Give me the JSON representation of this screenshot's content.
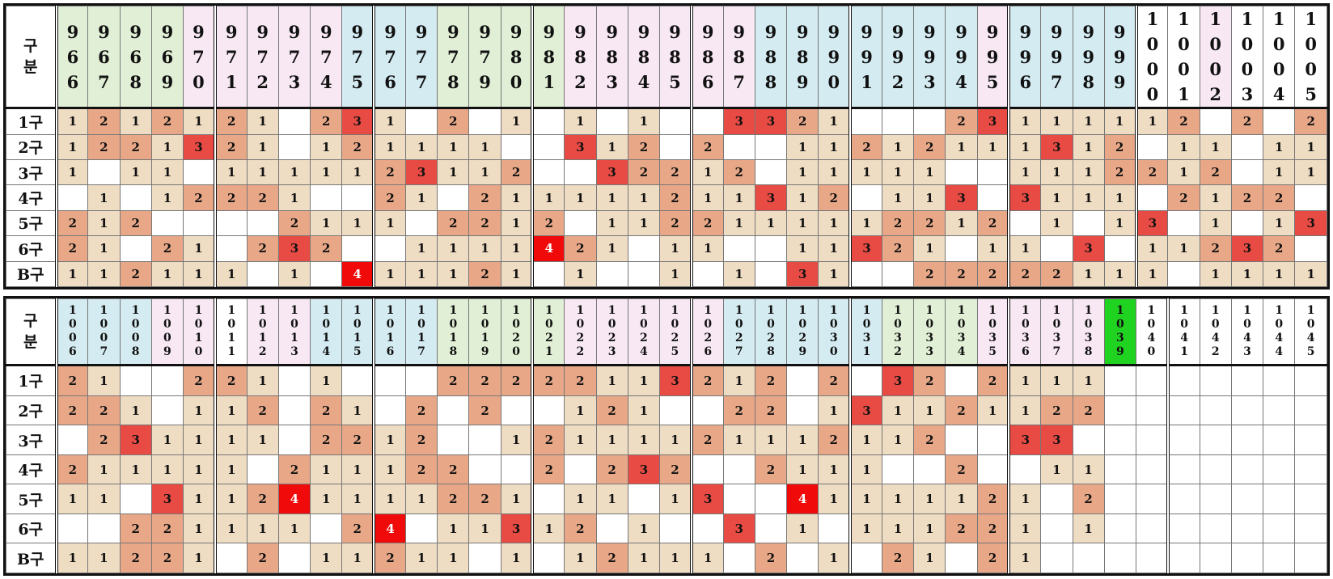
{
  "header_label": "구\n분",
  "row_labels": [
    "1구",
    "2구",
    "3구",
    "4구",
    "5구",
    "6구",
    "B구"
  ],
  "colors": {
    "header_green": "#e0efd5",
    "header_pink": "#f7e8f4",
    "header_blue": "#d4ebf1",
    "header_white": "#ffffff",
    "header_current": "#21d321",
    "count_1": "#eedcc3",
    "count_2": "#e8a888",
    "count_3": "#e74b44",
    "count_4": "#f00a0a",
    "empty_active": "#ffffff",
    "empty_future": "#ffffff"
  },
  "panels": [
    {
      "id": "top",
      "columns": [
        "966",
        "967",
        "968",
        "969",
        "970",
        "971",
        "972",
        "973",
        "974",
        "975",
        "976",
        "977",
        "978",
        "979",
        "980",
        "981",
        "982",
        "983",
        "984",
        "985",
        "986",
        "987",
        "988",
        "989",
        "990",
        "991",
        "992",
        "993",
        "994",
        "995",
        "996",
        "997",
        "998",
        "999",
        "1000",
        "1001",
        "1002",
        "1003",
        "1004",
        "1005"
      ],
      "header_colors": [
        "green",
        "green",
        "green",
        "green",
        "pink",
        "pink",
        "pink",
        "pink",
        "pink",
        "blue",
        "blue",
        "blue",
        "green",
        "green",
        "green",
        "green",
        "pink",
        "pink",
        "pink",
        "pink",
        "pink",
        "pink",
        "blue",
        "blue",
        "blue",
        "blue",
        "blue",
        "blue",
        "blue",
        "pink",
        "blue",
        "blue",
        "blue",
        "blue",
        "white",
        "white",
        "pink",
        "white",
        "white",
        "white"
      ],
      "separators_after": [
        5,
        10,
        15,
        20,
        25,
        30,
        34
      ],
      "rows": [
        [
          1,
          2,
          1,
          2,
          1,
          2,
          1,
          0,
          2,
          3,
          1,
          0,
          2,
          0,
          1,
          0,
          1,
          0,
          1,
          0,
          0,
          3,
          3,
          2,
          1,
          0,
          0,
          0,
          2,
          3,
          1,
          1,
          1,
          1,
          1,
          2,
          0,
          2,
          0,
          2
        ],
        [
          1,
          2,
          2,
          1,
          3,
          2,
          1,
          0,
          1,
          2,
          1,
          1,
          1,
          1,
          0,
          0,
          3,
          1,
          2,
          0,
          2,
          0,
          0,
          1,
          1,
          2,
          1,
          2,
          1,
          1,
          1,
          3,
          1,
          2,
          0,
          1,
          1,
          0,
          1,
          1
        ],
        [
          1,
          0,
          1,
          1,
          0,
          1,
          1,
          1,
          1,
          1,
          2,
          3,
          1,
          1,
          2,
          0,
          0,
          3,
          2,
          2,
          1,
          2,
          0,
          1,
          1,
          1,
          1,
          1,
          0,
          0,
          1,
          1,
          1,
          2,
          2,
          1,
          2,
          0,
          1,
          1
        ],
        [
          0,
          1,
          0,
          1,
          2,
          2,
          2,
          1,
          0,
          0,
          2,
          1,
          0,
          2,
          1,
          1,
          1,
          1,
          1,
          2,
          1,
          1,
          3,
          1,
          2,
          0,
          1,
          1,
          3,
          0,
          3,
          1,
          1,
          1,
          0,
          2,
          1,
          2,
          2,
          0
        ],
        [
          2,
          1,
          2,
          0,
          0,
          0,
          0,
          2,
          1,
          1,
          1,
          0,
          2,
          2,
          1,
          2,
          0,
          1,
          1,
          2,
          2,
          1,
          1,
          1,
          1,
          1,
          2,
          2,
          1,
          2,
          0,
          1,
          0,
          1,
          3,
          0,
          1,
          0,
          1,
          3
        ],
        [
          2,
          1,
          0,
          2,
          1,
          0,
          2,
          3,
          2,
          0,
          0,
          1,
          1,
          1,
          1,
          4,
          2,
          1,
          0,
          1,
          1,
          0,
          0,
          1,
          1,
          3,
          2,
          1,
          0,
          1,
          1,
          0,
          3,
          0,
          1,
          1,
          2,
          3,
          2,
          0
        ],
        [
          1,
          1,
          2,
          1,
          1,
          1,
          0,
          1,
          0,
          4,
          1,
          1,
          1,
          2,
          1,
          0,
          1,
          0,
          0,
          1,
          0,
          1,
          0,
          3,
          1,
          0,
          0,
          2,
          2,
          2,
          2,
          2,
          1,
          1,
          1,
          0,
          1,
          1,
          1,
          1
        ]
      ],
      "future_from": 99
    },
    {
      "id": "bottom",
      "columns": [
        "1006",
        "1007",
        "1008",
        "1009",
        "1010",
        "1011",
        "1012",
        "1013",
        "1014",
        "1015",
        "1016",
        "1017",
        "1018",
        "1019",
        "1020",
        "1021",
        "1022",
        "1023",
        "1024",
        "1025",
        "1026",
        "1027",
        "1028",
        "1029",
        "1030",
        "1031",
        "1032",
        "1033",
        "1034",
        "1035",
        "1036",
        "1037",
        "1038",
        "1039",
        "1040",
        "1041",
        "1042",
        "1043",
        "1044",
        "1045"
      ],
      "header_colors": [
        "blue",
        "blue",
        "blue",
        "pink",
        "pink",
        "white",
        "pink",
        "pink",
        "blue",
        "blue",
        "blue",
        "blue",
        "green",
        "green",
        "green",
        "green",
        "pink",
        "pink",
        "pink",
        "pink",
        "pink",
        "blue",
        "blue",
        "blue",
        "blue",
        "blue",
        "green",
        "green",
        "green",
        "pink",
        "pink",
        "pink",
        "pink",
        "current",
        "white",
        "white",
        "white",
        "white",
        "white",
        "white"
      ],
      "separators_after": [
        5,
        10,
        15,
        20,
        25,
        30,
        35
      ],
      "rows": [
        [
          2,
          1,
          0,
          0,
          2,
          2,
          1,
          0,
          1,
          0,
          0,
          0,
          2,
          2,
          2,
          2,
          2,
          1,
          1,
          3,
          2,
          1,
          2,
          0,
          2,
          0,
          3,
          2,
          0,
          2,
          1,
          1,
          1
        ],
        [
          2,
          2,
          1,
          0,
          1,
          1,
          2,
          0,
          2,
          1,
          0,
          2,
          0,
          2,
          0,
          0,
          1,
          2,
          1,
          0,
          0,
          2,
          2,
          0,
          1,
          3,
          1,
          1,
          2,
          1,
          1,
          2,
          2
        ],
        [
          0,
          2,
          3,
          1,
          1,
          1,
          1,
          0,
          2,
          2,
          1,
          2,
          0,
          0,
          1,
          2,
          1,
          1,
          1,
          1,
          2,
          1,
          1,
          1,
          2,
          1,
          1,
          2,
          0,
          0,
          3,
          3,
          0
        ],
        [
          2,
          1,
          1,
          1,
          1,
          1,
          0,
          2,
          1,
          1,
          1,
          2,
          2,
          0,
          0,
          2,
          0,
          2,
          3,
          2,
          0,
          0,
          2,
          1,
          1,
          1,
          0,
          0,
          2,
          0,
          0,
          1,
          1
        ],
        [
          1,
          1,
          0,
          3,
          1,
          1,
          2,
          4,
          1,
          1,
          1,
          1,
          2,
          2,
          1,
          0,
          1,
          1,
          0,
          1,
          3,
          0,
          0,
          4,
          1,
          1,
          1,
          1,
          1,
          2,
          1,
          0,
          2
        ],
        [
          0,
          0,
          2,
          2,
          1,
          1,
          1,
          1,
          0,
          2,
          4,
          0,
          1,
          1,
          3,
          1,
          2,
          0,
          1,
          0,
          0,
          3,
          0,
          1,
          0,
          1,
          1,
          1,
          2,
          2,
          1,
          0,
          1
        ],
        [
          1,
          1,
          2,
          2,
          1,
          0,
          2,
          0,
          1,
          1,
          2,
          1,
          1,
          0,
          1,
          0,
          1,
          2,
          1,
          1,
          1,
          0,
          2,
          0,
          1,
          0,
          2,
          1,
          0,
          2,
          1,
          0,
          0
        ]
      ],
      "future_from": 33
    }
  ]
}
